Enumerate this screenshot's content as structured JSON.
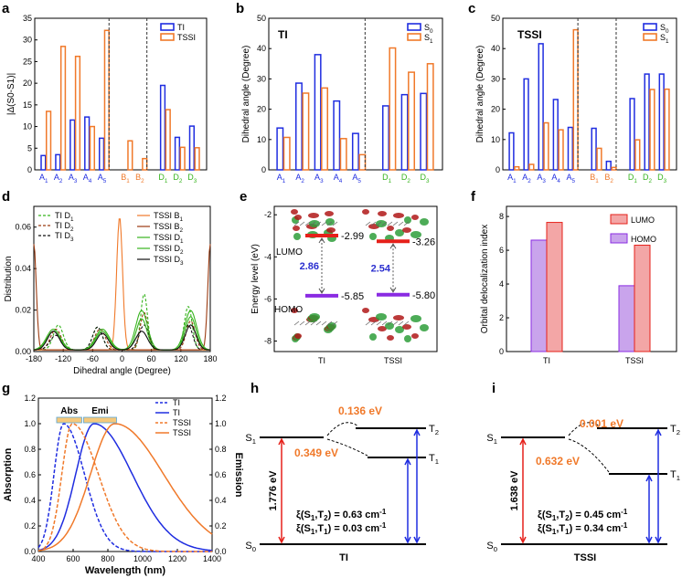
{
  "colors": {
    "blue": "#1f2de0",
    "orange": "#f0792a",
    "green": "#37b41e",
    "brown": "#9b3a10",
    "red": "#e6201a",
    "purple": "#8a2be2",
    "black": "#111111"
  },
  "panel_labels": [
    "a",
    "b",
    "c",
    "d",
    "e",
    "f",
    "g",
    "h",
    "i"
  ],
  "chart_data": [
    {
      "id": "a",
      "type": "bar",
      "ylabel": "|Δ(S0-S1)|",
      "ylim": [
        0,
        35
      ],
      "yticks": [
        0,
        5,
        10,
        15,
        20,
        25,
        30,
        35
      ],
      "legend": [
        "TI",
        "TSSI"
      ],
      "legend_position": "top-right",
      "groups": [
        {
          "labels": [
            [
              "A",
              "1"
            ],
            [
              "A",
              "2"
            ],
            [
              "A",
              "3"
            ],
            [
              "A",
              "4"
            ],
            [
              "A",
              "5"
            ]
          ],
          "label_color": "blue",
          "TI": [
            3.3,
            3.5,
            11.5,
            12.2,
            7.3
          ],
          "TSSI": [
            13.5,
            28.5,
            26.2,
            10.0,
            32.2
          ]
        },
        {
          "labels": [
            [
              "B",
              "1"
            ],
            [
              "B",
              "2"
            ]
          ],
          "label_color": "orange",
          "TI": [
            null,
            null
          ],
          "TSSI": [
            6.7,
            2.6
          ]
        },
        {
          "labels": [
            [
              "D",
              "1"
            ],
            [
              "D",
              "2"
            ],
            [
              "D",
              "3"
            ]
          ],
          "label_color": "green",
          "TI": [
            19.5,
            7.5,
            10.1
          ],
          "TSSI": [
            13.9,
            5.2,
            5.1
          ]
        }
      ]
    },
    {
      "id": "b",
      "type": "bar",
      "title": "TI",
      "ylabel": "Dihedral angle (Degree)",
      "ylim": [
        0,
        50
      ],
      "yticks": [
        0,
        10,
        20,
        30,
        40,
        50
      ],
      "legend": [
        "S0",
        "S1"
      ],
      "legend_position": "top-right",
      "groups": [
        {
          "labels": [
            [
              "A",
              "1"
            ],
            [
              "A",
              "2"
            ],
            [
              "A",
              "3"
            ],
            [
              "A",
              "4"
            ],
            [
              "A",
              "5"
            ]
          ],
          "label_color": "blue",
          "S0": [
            13.8,
            28.6,
            38.0,
            22.7,
            12.0
          ],
          "S1": [
            10.7,
            25.3,
            27.0,
            10.3,
            5.0
          ]
        },
        {
          "labels": [
            [
              "D",
              "1"
            ],
            [
              "D",
              "2"
            ],
            [
              "D",
              "3"
            ]
          ],
          "label_color": "green",
          "S0": [
            21.1,
            24.8,
            25.2
          ],
          "S1": [
            40.2,
            32.2,
            35.0
          ]
        }
      ]
    },
    {
      "id": "c",
      "type": "bar",
      "title": "TSSI",
      "ylabel": "Dihedral angle (Degree)",
      "ylim": [
        0,
        50
      ],
      "yticks": [
        0,
        10,
        20,
        30,
        40,
        50
      ],
      "legend": [
        "S0",
        "S1"
      ],
      "legend_position": "top-right",
      "groups": [
        {
          "labels": [
            [
              "A",
              "1"
            ],
            [
              "A",
              "2"
            ],
            [
              "A",
              "3"
            ],
            [
              "A",
              "4"
            ],
            [
              "A",
              "5"
            ]
          ],
          "label_color": "blue",
          "S0": [
            12.2,
            30.0,
            41.6,
            23.2,
            14.0
          ],
          "S1": [
            1.0,
            1.8,
            15.5,
            13.2,
            46.2
          ]
        },
        {
          "labels": [
            [
              "B",
              "1"
            ],
            [
              "B",
              "2"
            ]
          ],
          "label_color": "orange",
          "S0": [
            13.7,
            2.8
          ],
          "S1": [
            7.1,
            0.8
          ]
        },
        {
          "labels": [
            [
              "D",
              "1"
            ],
            [
              "D",
              "2"
            ],
            [
              "D",
              "3"
            ]
          ],
          "label_color": "green",
          "S0": [
            23.5,
            31.6,
            31.6
          ],
          "S1": [
            9.9,
            26.5,
            26.6
          ]
        }
      ]
    },
    {
      "id": "d",
      "type": "line",
      "xlabel": "Dihedral angle (Degree)",
      "ylabel": "Distribution",
      "xlim": [
        -180,
        180
      ],
      "ylim": [
        0,
        0.07
      ],
      "xticks": [
        -180,
        -120,
        -60,
        0,
        60,
        120,
        180
      ],
      "yticks": [
        "0.00",
        "0.02",
        "0.04",
        "0.06"
      ],
      "series": [
        {
          "name": "TI D1",
          "color": "green",
          "style": "dash",
          "peaks": [
            [
              -130,
              0.012,
              10
            ],
            [
              -50,
              0.011,
              10
            ],
            [
              45,
              0.027,
              7
            ],
            [
              135,
              0.021,
              8
            ]
          ]
        },
        {
          "name": "TI D2",
          "color": "brown",
          "style": "dash",
          "peaks": [
            [
              -135,
              0.01,
              11
            ],
            [
              -45,
              0.01,
              11
            ],
            [
              45,
              0.018,
              8
            ],
            [
              140,
              0.014,
              9
            ]
          ]
        },
        {
          "name": "TI D3",
          "color": "black",
          "style": "dash",
          "peaks": [
            [
              -135,
              0.007,
              12
            ],
            [
              -50,
              0.011,
              10
            ],
            [
              45,
              0.012,
              10
            ],
            [
              135,
              0.012,
              9
            ]
          ]
        },
        {
          "name": "TSSI B1",
          "color": "orange",
          "style": "solid",
          "peaks": [
            [
              -5,
              0.064,
              6
            ]
          ]
        },
        {
          "name": "TSSI B2",
          "color": "brown",
          "style": "solid",
          "peaks": [
            [
              -180,
              0.051,
              5
            ],
            [
              180,
              0.051,
              5
            ]
          ]
        },
        {
          "name": "TSSI D1",
          "color": "green",
          "style": "solid",
          "peaks": [
            [
              -140,
              0.01,
              14
            ],
            [
              -40,
              0.01,
              14
            ],
            [
              40,
              0.019,
              12
            ],
            [
              140,
              0.019,
              12
            ]
          ]
        },
        {
          "name": "TSSI D2",
          "color": "green",
          "style": "solid",
          "peaks": [
            [
              -140,
              0.009,
              13
            ],
            [
              -40,
              0.009,
              13
            ],
            [
              40,
              0.015,
              11
            ],
            [
              140,
              0.016,
              11
            ]
          ]
        },
        {
          "name": "TSSI D3",
          "color": "black",
          "style": "solid",
          "peaks": [
            [
              -140,
              0.009,
              12
            ],
            [
              -40,
              0.008,
              12
            ],
            [
              40,
              0.009,
              12
            ],
            [
              140,
              0.012,
              11
            ]
          ]
        }
      ]
    },
    {
      "id": "e",
      "type": "diagram",
      "ylabel": "Energy level (eV)",
      "ylim": [
        -8,
        -2
      ],
      "yticks": [
        -2,
        -4,
        -6,
        -8
      ],
      "categories": [
        "TI",
        "TSSI"
      ],
      "LUMO_label": "LUMO",
      "HOMO_label": "HOMO",
      "LUMO": [
        -2.99,
        -3.26
      ],
      "HOMO": [
        -5.85,
        -5.8
      ],
      "LUMO_text": [
        "-2.99",
        "-3.26"
      ],
      "HOMO_text": [
        "-5.85",
        "-5.80"
      ],
      "gap": [
        "2.86",
        "2.54"
      ]
    },
    {
      "id": "f",
      "type": "bar",
      "ylabel": "Orbital delocalization index",
      "ylim": [
        0,
        8.6
      ],
      "yticks": [
        0,
        2,
        4,
        6,
        8
      ],
      "categories": [
        "TI",
        "TSSI"
      ],
      "legend": [
        "LUMO",
        "HOMO"
      ],
      "legend_position": "top-right",
      "HOMO": [
        6.6,
        3.9
      ],
      "LUMO": [
        7.65,
        6.3
      ]
    },
    {
      "id": "g",
      "type": "line",
      "xlabel": "Wavelength (nm)",
      "ylabel": "Absorption",
      "ylabel_right": "Emission",
      "xlim": [
        400,
        1400
      ],
      "ylim": [
        0,
        1.2
      ],
      "xticks": [
        400,
        600,
        800,
        1000,
        1200,
        1400
      ],
      "yticks": [
        "0.0",
        "0.2",
        "0.4",
        "0.6",
        "0.8",
        "1.0",
        "1.2"
      ],
      "annotations": [
        "Abs",
        "Emi"
      ],
      "series": [
        {
          "name": "TI",
          "kind": "abs",
          "color": "blue",
          "style": "dash",
          "peak": 545,
          "wl": 55,
          "wr": 120
        },
        {
          "name": "TI",
          "kind": "emi",
          "color": "blue",
          "style": "solid",
          "peak": 720,
          "wl": 105,
          "wr": 220
        },
        {
          "name": "TSSI",
          "kind": "abs",
          "color": "orange",
          "style": "dash",
          "peak": 595,
          "wl": 60,
          "wr": 150
        },
        {
          "name": "TSSI",
          "kind": "emi",
          "color": "orange",
          "style": "solid",
          "peak": 840,
          "wl": 140,
          "wr": 280
        }
      ]
    },
    {
      "id": "h",
      "type": "diagram",
      "molecule": "TI",
      "S0": "S",
      "S1": "S",
      "T1": "T",
      "T2": "T",
      "sub0": "0",
      "sub1": "1",
      "sub2": "2",
      "soc_T2": "0.136 eV",
      "soc_T1": "0.349 eV",
      "gap": "1.776 eV",
      "xi_T2": [
        "ξ(S",
        "1",
        ",T",
        "2",
        ") = 0.63 cm",
        "-1"
      ],
      "xi_T1": [
        "ξ(S",
        "1",
        ",T",
        "1",
        ") = 0.03 cm",
        "-1"
      ]
    },
    {
      "id": "i",
      "type": "diagram",
      "molecule": "TSSI",
      "S0": "S",
      "S1": "S",
      "T1": "T",
      "T2": "T",
      "sub0": "0",
      "sub1": "1",
      "sub2": "2",
      "soc_T2": "0.001 eV",
      "soc_T1": "0.632 eV",
      "gap": "1.638 eV",
      "xi_T2": [
        "ξ(S",
        "1",
        ",T",
        "2",
        ") = 0.45 cm",
        "-1"
      ],
      "xi_T1": [
        "ξ(S",
        "1",
        ",T",
        "1",
        ") = 0.34 cm",
        "-1"
      ]
    }
  ]
}
